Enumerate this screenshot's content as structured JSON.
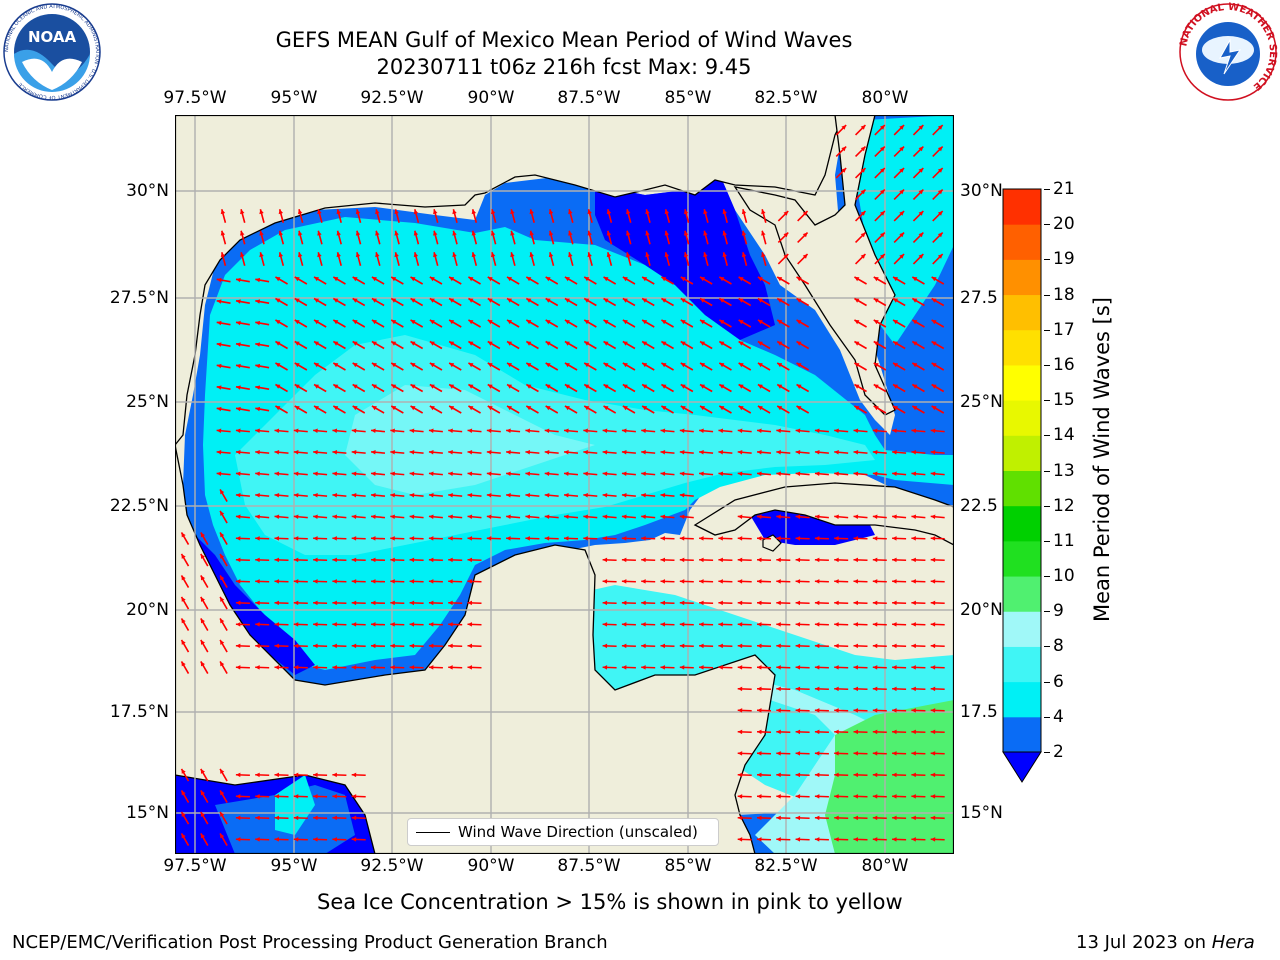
{
  "title": {
    "line1": "GEFS MEAN Gulf of Mexico Mean Period of Wind Waves",
    "line2": "20230711 t06z 216h fcst   Max: 9.45"
  },
  "logos": {
    "left": {
      "text": "NOAA",
      "ring": "NATIONAL OCEANIC AND ATMOSPHERIC ADMINISTRATION · U.S. DEPARTMENT OF COMMERCE",
      "icon": "noaa-logo-icon"
    },
    "right": {
      "ring": "NATIONAL WEATHER SERVICE",
      "icon": "nws-logo-icon"
    }
  },
  "lon_ticks": [
    "97.5°W",
    "95°W",
    "92.5°W",
    "90°W",
    "87.5°W",
    "85°W",
    "82.5°W",
    "80°W"
  ],
  "lat_ticks_left": [
    "30°N",
    "27.5°N",
    "25°N",
    "22.5°N",
    "20°N",
    "17.5°N",
    "15°N"
  ],
  "lat_ticks_right": [
    "30°N",
    "27.5",
    "25°N",
    "22.5",
    "20°N",
    "17.5",
    "15°N"
  ],
  "legend": {
    "label": "Wind Wave Direction (unscaled)"
  },
  "colorbar": {
    "label": "Mean Period of Wind Waves [s]",
    "ticks": [
      "2",
      "4",
      "6",
      "8",
      "9",
      "10",
      "11",
      "12",
      "13",
      "14",
      "15",
      "16",
      "17",
      "18",
      "19",
      "20",
      "21"
    ],
    "colors": [
      "#0a6cf5",
      "#00f0f5",
      "#40f5f5",
      "#a0f8f8",
      "#50f070",
      "#20e020",
      "#00d000",
      "#60e000",
      "#c0f000",
      "#e8f800",
      "#ffff00",
      "#ffe000",
      "#ffbf00",
      "#ff9000",
      "#ff6000",
      "#ff3000",
      "#ff0000"
    ],
    "extend_color": "#0000ff"
  },
  "map_colors": {
    "land": "#efeedb",
    "coast": "#000000",
    "grid": "#b0b0b0",
    "arrow": "#ff0000",
    "period_2_4": "#0a6cf5",
    "period_4_6": "#00f0f5",
    "period_6_8": "#40f5f5",
    "period_8_9": "#a0f8f8",
    "period_9_10": "#50f070",
    "below_2": "#0000ff"
  },
  "caption": "Sea Ice Concentration > 15% is shown in pink to yellow",
  "footer": {
    "left": "NCEP/EMC/Verification Post Processing Product Generation Branch",
    "right_date": "13 Jul 2023 on ",
    "right_host": "Hera"
  }
}
